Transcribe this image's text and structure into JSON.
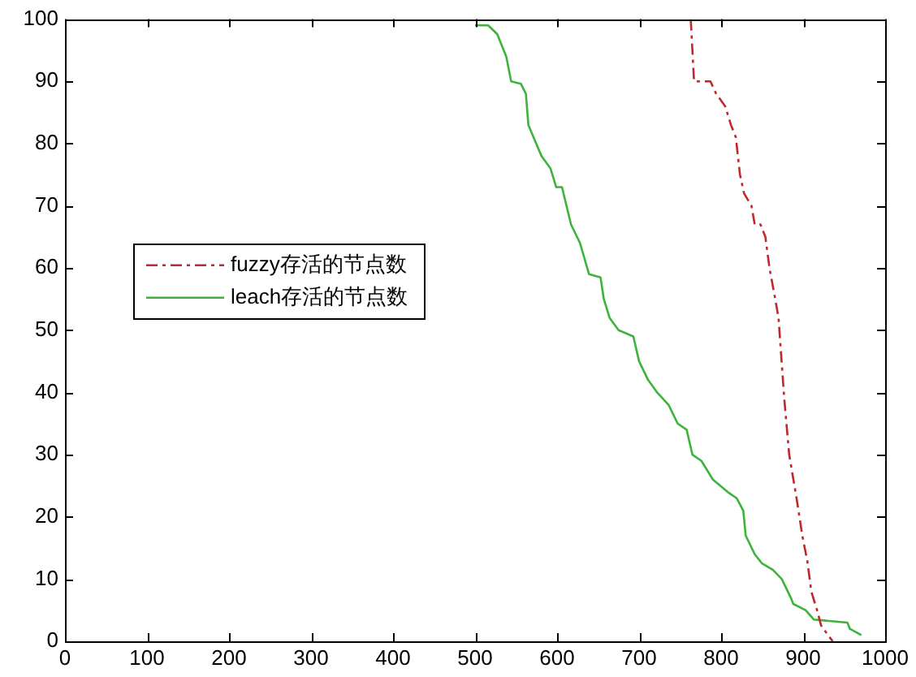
{
  "chart_data": {
    "type": "line",
    "xlim": [
      0,
      1000
    ],
    "xticks": [
      0,
      100,
      200,
      300,
      400,
      500,
      600,
      700,
      800,
      900,
      1000
    ],
    "ylim": [
      0,
      100
    ],
    "yticks": [
      0,
      10,
      20,
      30,
      40,
      50,
      60,
      70,
      80,
      90,
      100
    ],
    "grid": false,
    "legend": "left",
    "marker": "none",
    "series": [
      {
        "name": "fuzzy存活的节点数",
        "color": "#c0282d",
        "line_style": "dashed",
        "x": [
          763,
          767,
          787,
          794,
          805,
          812,
          818,
          823,
          828,
          837,
          841,
          848,
          854,
          859,
          866,
          870,
          877,
          883,
          892,
          899,
          905,
          910,
          917,
          922,
          936
        ],
        "values": [
          100,
          90,
          90,
          88,
          86,
          83,
          81,
          75,
          72,
          70,
          67,
          67,
          65,
          60,
          55,
          52,
          39,
          30,
          23,
          17,
          13,
          8,
          5,
          2.5,
          0
        ]
      },
      {
        "name": "leach存活的节点数",
        "color": "#3cb43c",
        "line_style": "solid",
        "x": [
          500,
          516,
          527,
          538,
          544,
          556,
          562,
          565,
          581,
          592,
          599,
          606,
          617,
          628,
          639,
          653,
          657,
          664,
          675,
          693,
          700,
          711,
          722,
          736,
          747,
          758,
          765,
          776,
          790,
          808,
          819,
          827,
          830,
          841,
          850,
          863,
          874,
          885,
          888,
          903,
          913,
          954,
          957,
          971
        ],
        "values": [
          99,
          99,
          97.6,
          94,
          90,
          89.6,
          88,
          83,
          78,
          76,
          73,
          73,
          67,
          64,
          59,
          58.5,
          55,
          52,
          50,
          49,
          45,
          42,
          40,
          38,
          35,
          34,
          30,
          29,
          26,
          24,
          23,
          21,
          17,
          14,
          12.5,
          11.5,
          10,
          7,
          6,
          5,
          3.5,
          3,
          2,
          1
        ]
      }
    ]
  }
}
